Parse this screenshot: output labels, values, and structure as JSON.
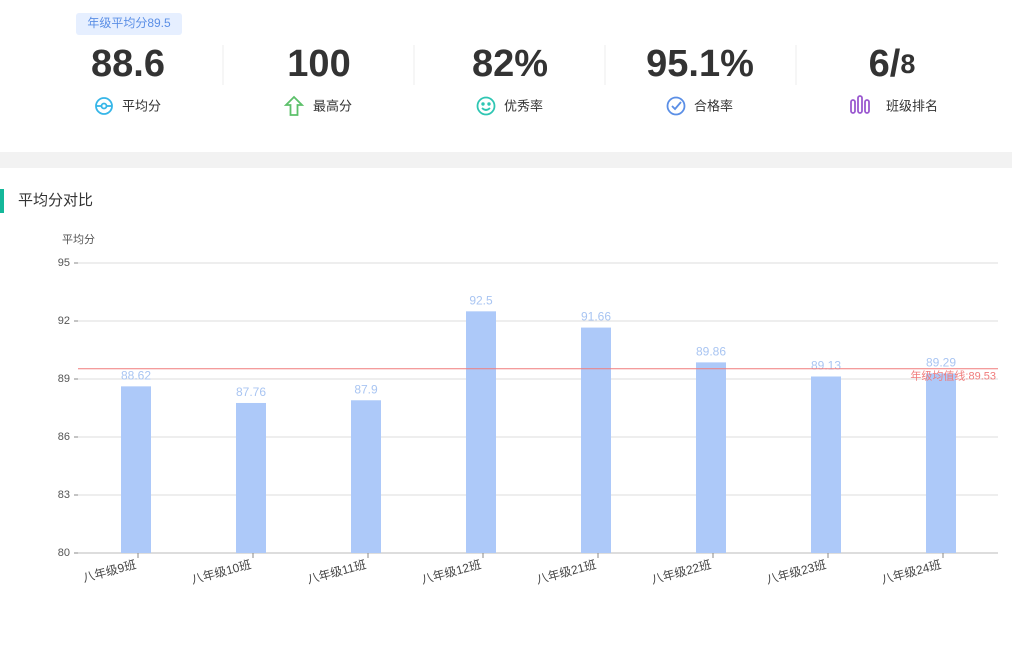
{
  "badge": "年级平均分89.5",
  "stats": [
    {
      "value": "88.6",
      "label": "平均分"
    },
    {
      "value": "100",
      "label": "最高分"
    },
    {
      "value": "82%",
      "label": "优秀率"
    },
    {
      "value": "95.1%",
      "label": "合格率"
    },
    {
      "value": "6/",
      "suffix": "8",
      "label": "班级排名"
    }
  ],
  "chart_data": {
    "type": "bar",
    "title": "平均分对比",
    "y_label": "平均分",
    "categories": [
      "八年级9班",
      "八年级10班",
      "八年级11班",
      "八年级12班",
      "八年级21班",
      "八年级22班",
      "八年级23班",
      "八年级24班"
    ],
    "values": [
      88.62,
      87.76,
      87.9,
      92.5,
      91.66,
      89.86,
      89.13,
      89.29
    ],
    "color": "#adc9f9",
    "label_color": "#a9c5f2",
    "ylim": [
      80,
      95
    ],
    "yticks": [
      80,
      83,
      86,
      89,
      92,
      95
    ],
    "grid": true,
    "markline": {
      "value": 89.53,
      "label": "年级均值线:89.53",
      "color": "#f07c7c"
    }
  }
}
